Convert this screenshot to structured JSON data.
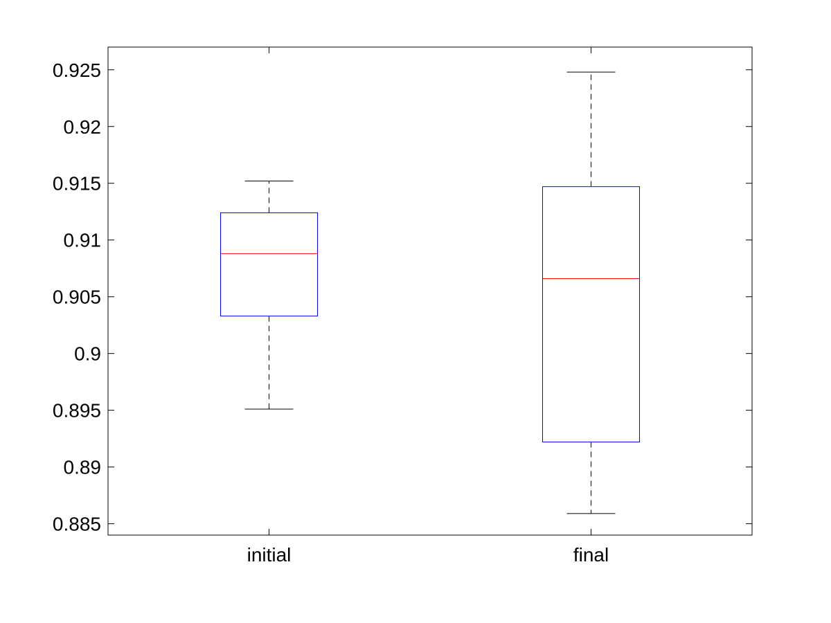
{
  "chart_data": {
    "type": "box",
    "title": "",
    "xlabel": "",
    "ylabel": "",
    "ylim": [
      0.884,
      0.927
    ],
    "yticks": [
      0.885,
      0.89,
      0.895,
      0.9,
      0.905,
      0.91,
      0.915,
      0.92,
      0.925
    ],
    "ytick_labels": [
      "0.885",
      "0.89",
      "0.895",
      "0.9",
      "0.905",
      "0.91",
      "0.915",
      "0.92",
      "0.925"
    ],
    "categories": [
      "initial",
      "final"
    ],
    "boxes": [
      {
        "category": "initial",
        "whisker_low": 0.8951,
        "q1": 0.9033,
        "median": 0.9088,
        "q3": 0.9124,
        "whisker_high": 0.9152
      },
      {
        "category": "final",
        "whisker_low": 0.8859,
        "q1": 0.8922,
        "median": 0.9066,
        "q3": 0.9147,
        "whisker_high": 0.9248
      }
    ],
    "grid": false,
    "colors": {
      "box": "#0000ff",
      "median": "#ff0000",
      "whisker": "#000000",
      "axes": "#000000"
    }
  }
}
